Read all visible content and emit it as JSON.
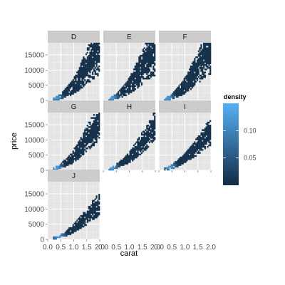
{
  "chart_data": {
    "type": "heatmap",
    "chart_kind": "faceted 2D density (binned) plot",
    "xlabel": "carat",
    "ylabel": "price",
    "facet_labels": [
      "D",
      "E",
      "F",
      "G",
      "H",
      "I",
      "J"
    ],
    "xlim": [
      0.0,
      2.0
    ],
    "ylim": [
      0,
      19000
    ],
    "x_ticks": [
      0.0,
      0.5,
      1.0,
      1.5,
      2.0
    ],
    "x_tick_labels": [
      "0.0",
      "0.5",
      "1.0",
      "1.5",
      "2.0"
    ],
    "y_ticks": [
      0,
      5000,
      10000,
      15000
    ],
    "y_tick_labels": [
      "0",
      "5000",
      "10000",
      "15000"
    ],
    "grid": true,
    "legend": {
      "title": "density",
      "position": "right",
      "range": [
        0.0,
        0.15
      ],
      "ticks": [
        0.05,
        0.1
      ],
      "tick_labels": [
        "0.05",
        "0.10"
      ],
      "color_low": "#132b43",
      "color_high": "#56b1f7"
    },
    "facets": [
      {
        "label": "D",
        "ridge": [
          [
            0.2,
            350
          ],
          [
            0.3,
            600
          ],
          [
            0.4,
            900
          ],
          [
            0.5,
            1400
          ],
          [
            0.6,
            2000
          ],
          [
            0.7,
            2700
          ],
          [
            0.8,
            3300
          ],
          [
            0.9,
            4000
          ],
          [
            1.0,
            5000
          ],
          [
            1.1,
            6000
          ],
          [
            1.2,
            7200
          ],
          [
            1.3,
            8500
          ],
          [
            1.4,
            9800
          ],
          [
            1.5,
            11000
          ],
          [
            1.6,
            12500
          ],
          [
            1.7,
            14000
          ],
          [
            1.8,
            15200
          ],
          [
            1.9,
            16300
          ],
          [
            2.0,
            17000
          ]
        ],
        "spread": 0.45,
        "hot_x": 0.3,
        "hot_y": 700
      },
      {
        "label": "E",
        "ridge": [
          [
            0.2,
            350
          ],
          [
            0.3,
            600
          ],
          [
            0.4,
            900
          ],
          [
            0.5,
            1400
          ],
          [
            0.6,
            2000
          ],
          [
            0.7,
            2700
          ],
          [
            0.8,
            3300
          ],
          [
            0.9,
            4000
          ],
          [
            1.0,
            5000
          ],
          [
            1.1,
            6000
          ],
          [
            1.2,
            7200
          ],
          [
            1.3,
            8500
          ],
          [
            1.4,
            9800
          ],
          [
            1.5,
            11000
          ],
          [
            1.6,
            12500
          ],
          [
            1.7,
            14000
          ],
          [
            1.8,
            15200
          ],
          [
            1.9,
            16300
          ],
          [
            2.0,
            17000
          ]
        ],
        "spread": 0.45,
        "hot_x": 0.3,
        "hot_y": 650
      },
      {
        "label": "F",
        "ridge": [
          [
            0.2,
            350
          ],
          [
            0.3,
            600
          ],
          [
            0.4,
            900
          ],
          [
            0.5,
            1400
          ],
          [
            0.6,
            2000
          ],
          [
            0.7,
            2700
          ],
          [
            0.8,
            3300
          ],
          [
            0.9,
            4000
          ],
          [
            1.0,
            5000
          ],
          [
            1.1,
            6000
          ],
          [
            1.2,
            7200
          ],
          [
            1.3,
            8500
          ],
          [
            1.4,
            9800
          ],
          [
            1.5,
            11000
          ],
          [
            1.6,
            12500
          ],
          [
            1.7,
            14000
          ],
          [
            1.8,
            15200
          ],
          [
            1.9,
            16300
          ],
          [
            2.0,
            17000
          ]
        ],
        "spread": 0.42,
        "hot_x": 0.3,
        "hot_y": 700
      },
      {
        "label": "G",
        "ridge": [
          [
            0.2,
            350
          ],
          [
            0.3,
            600
          ],
          [
            0.4,
            900
          ],
          [
            0.5,
            1400
          ],
          [
            0.6,
            2000
          ],
          [
            0.7,
            2600
          ],
          [
            0.8,
            3200
          ],
          [
            0.9,
            3900
          ],
          [
            1.0,
            4800
          ],
          [
            1.1,
            5700
          ],
          [
            1.2,
            6800
          ],
          [
            1.3,
            7900
          ],
          [
            1.4,
            9100
          ],
          [
            1.5,
            10300
          ],
          [
            1.6,
            11600
          ],
          [
            1.7,
            12900
          ],
          [
            1.8,
            14100
          ],
          [
            1.9,
            15300
          ],
          [
            2.0,
            16300
          ]
        ],
        "spread": 0.35,
        "hot_x": 0.3,
        "hot_y": 700
      },
      {
        "label": "H",
        "ridge": [
          [
            0.2,
            350
          ],
          [
            0.3,
            550
          ],
          [
            0.4,
            850
          ],
          [
            0.5,
            1300
          ],
          [
            0.6,
            1800
          ],
          [
            0.7,
            2400
          ],
          [
            0.8,
            3000
          ],
          [
            0.9,
            3600
          ],
          [
            1.0,
            4400
          ],
          [
            1.1,
            5200
          ],
          [
            1.2,
            6100
          ],
          [
            1.3,
            7100
          ],
          [
            1.4,
            8100
          ],
          [
            1.5,
            9100
          ],
          [
            1.6,
            10200
          ],
          [
            1.7,
            11300
          ],
          [
            1.8,
            12400
          ],
          [
            1.9,
            13400
          ],
          [
            2.0,
            14400
          ]
        ],
        "spread": 0.32,
        "hot_x": 0.3,
        "hot_y": 650
      },
      {
        "label": "I",
        "ridge": [
          [
            0.3,
            550
          ],
          [
            0.4,
            800
          ],
          [
            0.5,
            1200
          ],
          [
            0.6,
            1700
          ],
          [
            0.7,
            2200
          ],
          [
            0.8,
            2800
          ],
          [
            0.9,
            3400
          ],
          [
            1.0,
            4100
          ],
          [
            1.1,
            4800
          ],
          [
            1.2,
            5600
          ],
          [
            1.3,
            6400
          ],
          [
            1.4,
            7300
          ],
          [
            1.5,
            8200
          ],
          [
            1.6,
            9100
          ],
          [
            1.7,
            10000
          ],
          [
            1.8,
            11000
          ],
          [
            1.9,
            11900
          ],
          [
            2.0,
            12800
          ]
        ],
        "spread": 0.3,
        "hot_x": 0.4,
        "hot_y": 900
      },
      {
        "label": "J",
        "ridge": [
          [
            0.3,
            500
          ],
          [
            0.4,
            750
          ],
          [
            0.5,
            1100
          ],
          [
            0.6,
            1500
          ],
          [
            0.7,
            2000
          ],
          [
            0.8,
            2500
          ],
          [
            0.9,
            3100
          ],
          [
            1.0,
            3700
          ],
          [
            1.1,
            4400
          ],
          [
            1.2,
            5100
          ],
          [
            1.3,
            5900
          ],
          [
            1.4,
            6700
          ],
          [
            1.5,
            7500
          ],
          [
            1.6,
            8400
          ],
          [
            1.7,
            9300
          ],
          [
            1.8,
            10200
          ],
          [
            1.9,
            11100
          ],
          [
            2.0,
            12000
          ]
        ],
        "spread": 0.28,
        "hot_x": 0.4,
        "hot_y": 800
      }
    ]
  }
}
